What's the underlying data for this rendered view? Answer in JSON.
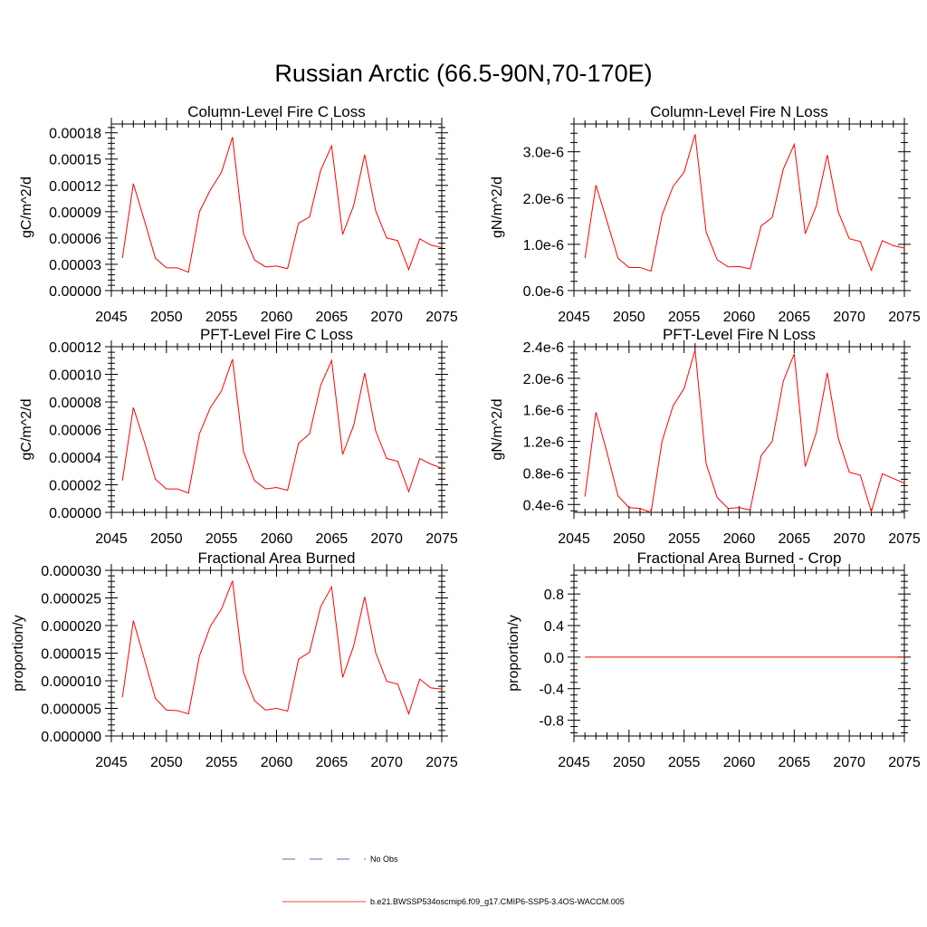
{
  "title": "Russian Arctic (66.5-90N,70-170E)",
  "chart_data": [
    {
      "type": "line",
      "title": "Column-Level Fire C Loss",
      "ylabel": "gC/m^2/d",
      "xlim": [
        2045,
        2075
      ],
      "ylim": [
        0,
        0.00019
      ],
      "xticks": [
        2045,
        2050,
        2055,
        2060,
        2065,
        2070,
        2075
      ],
      "xtick_labels": [
        "2045",
        "2050",
        "2055",
        "2060",
        "2065",
        "2070",
        "2075"
      ],
      "yticks": [
        0,
        3e-05,
        6e-05,
        9e-05,
        0.00012,
        0.00015,
        0.00018
      ],
      "ytick_labels": [
        "0.00000",
        "0.00003",
        "0.00006",
        "0.00009",
        "0.00012",
        "0.00015",
        "0.00018"
      ],
      "color": "#ff0000",
      "x": [
        2046,
        2047,
        2048,
        2049,
        2050,
        2051,
        2052,
        2053,
        2054,
        2055,
        2056,
        2057,
        2058,
        2059,
        2060,
        2061,
        2062,
        2063,
        2064,
        2065,
        2066,
        2067,
        2068,
        2069,
        2070,
        2071,
        2072,
        2073,
        2074,
        2075
      ],
      "values": [
        3.7e-05,
        0.000122,
        8e-05,
        3.7e-05,
        2.6e-05,
        2.6e-05,
        2.1e-05,
        9e-05,
        0.000115,
        0.000135,
        0.000175,
        6.5e-05,
        3.5e-05,
        2.7e-05,
        2.8e-05,
        2.5e-05,
        7.7e-05,
        8.4e-05,
        0.000137,
        0.000165,
        6.4e-05,
        9.7e-05,
        0.000155,
        9.1e-05,
        6e-05,
        5.7e-05,
        2.4e-05,
        5.9e-05,
        5.2e-05,
        4.9e-05
      ]
    },
    {
      "type": "line",
      "title": "Column-Level Fire N Loss",
      "ylabel": "gN/m^2/d",
      "xlim": [
        2045,
        2075
      ],
      "ylim": [
        0,
        3.6e-06
      ],
      "xticks": [
        2045,
        2050,
        2055,
        2060,
        2065,
        2070,
        2075
      ],
      "xtick_labels": [
        "2045",
        "2050",
        "2055",
        "2060",
        "2065",
        "2070",
        "2075"
      ],
      "yticks": [
        0,
        1e-06,
        2e-06,
        3e-06
      ],
      "ytick_labels": [
        "0.0e-6",
        "1.0e-6",
        "2.0e-6",
        "3.0e-6"
      ],
      "color": "#ff0000",
      "x": [
        2046,
        2047,
        2048,
        2049,
        2050,
        2051,
        2052,
        2053,
        2054,
        2055,
        2056,
        2057,
        2058,
        2059,
        2060,
        2061,
        2062,
        2063,
        2064,
        2065,
        2066,
        2067,
        2068,
        2069,
        2070,
        2071,
        2072,
        2073,
        2074,
        2075
      ],
      "values": [
        7e-07,
        2.28e-06,
        1.5e-06,
        7e-07,
        5e-07,
        5e-07,
        4.2e-07,
        1.63e-06,
        2.25e-06,
        2.56e-06,
        3.38e-06,
        1.27e-06,
        6.7e-07,
        5.1e-07,
        5.2e-07,
        4.7e-07,
        1.4e-06,
        1.58e-06,
        2.62e-06,
        3.16e-06,
        1.23e-06,
        1.83e-06,
        2.93e-06,
        1.7e-06,
        1.12e-06,
        1.06e-06,
        4.4e-07,
        1.08e-06,
        9.7e-07,
        9.2e-07
      ]
    },
    {
      "type": "line",
      "title": "PFT-Level Fire C Loss",
      "ylabel": "gC/m^2/d",
      "xlim": [
        2045,
        2075
      ],
      "ylim": [
        0,
        0.00012
      ],
      "xticks": [
        2045,
        2050,
        2055,
        2060,
        2065,
        2070,
        2075
      ],
      "xtick_labels": [
        "2045",
        "2050",
        "2055",
        "2060",
        "2065",
        "2070",
        "2075"
      ],
      "yticks": [
        0,
        2e-05,
        4e-05,
        6e-05,
        8e-05,
        0.0001,
        0.00012
      ],
      "ytick_labels": [
        "0.00000",
        "0.00002",
        "0.00004",
        "0.00006",
        "0.00008",
        "0.00010",
        "0.00012"
      ],
      "color": "#ff0000",
      "x": [
        2046,
        2047,
        2048,
        2049,
        2050,
        2051,
        2052,
        2053,
        2054,
        2055,
        2056,
        2057,
        2058,
        2059,
        2060,
        2061,
        2062,
        2063,
        2064,
        2065,
        2066,
        2067,
        2068,
        2069,
        2070,
        2071,
        2072,
        2073,
        2074,
        2075
      ],
      "values": [
        2.3e-05,
        7.6e-05,
        5.1e-05,
        2.4e-05,
        1.7e-05,
        1.7e-05,
        1.4e-05,
        5.7e-05,
        7.6e-05,
        8.8e-05,
        0.000111,
        4.4e-05,
        2.3e-05,
        1.7e-05,
        1.8e-05,
        1.6e-05,
        5e-05,
        5.7e-05,
        9.2e-05,
        0.00011,
        4.2e-05,
        6.3e-05,
        0.000101,
        5.9e-05,
        3.9e-05,
        3.7e-05,
        1.5e-05,
        3.9e-05,
        3.5e-05,
        3.2e-05
      ]
    },
    {
      "type": "line",
      "title": "PFT-Level Fire N Loss",
      "ylabel": "gN/m^2/d",
      "xlim": [
        2045,
        2075
      ],
      "ylim": [
        3e-07,
        2.4e-06
      ],
      "xticks": [
        2045,
        2050,
        2055,
        2060,
        2065,
        2070,
        2075
      ],
      "xtick_labels": [
        "2045",
        "2050",
        "2055",
        "2060",
        "2065",
        "2070",
        "2075"
      ],
      "yticks": [
        4e-07,
        8e-07,
        1.2e-06,
        1.6e-06,
        2e-06,
        2.4e-06
      ],
      "ytick_labels": [
        "0.4e-6",
        "0.8e-6",
        "1.2e-6",
        "1.6e-6",
        "2.0e-6",
        "2.4e-6"
      ],
      "color": "#ff0000",
      "x": [
        2046,
        2047,
        2048,
        2049,
        2050,
        2051,
        2052,
        2053,
        2054,
        2055,
        2056,
        2057,
        2058,
        2059,
        2060,
        2061,
        2062,
        2063,
        2064,
        2065,
        2066,
        2067,
        2068,
        2069,
        2070,
        2071,
        2072,
        2073,
        2074,
        2075
      ],
      "values": [
        5e-07,
        1.57e-06,
        1.06e-06,
        5.1e-07,
        3.6e-07,
        3.5e-07,
        3e-07,
        1.2e-06,
        1.65e-06,
        1.87e-06,
        2.36e-06,
        9.2e-07,
        4.9e-07,
        3.5e-07,
        3.6e-07,
        3.3e-07,
        1.02e-06,
        1.2e-06,
        1.96e-06,
        2.31e-06,
        8.8e-07,
        1.31e-06,
        2.07e-06,
        1.24e-06,
        8.1e-07,
        7.7e-07,
        3.1e-07,
        7.9e-07,
        7.3e-07,
        6.7e-07
      ]
    },
    {
      "type": "line",
      "title": "Fractional Area Burned",
      "ylabel": "proportion/y",
      "xlim": [
        2045,
        2075
      ],
      "ylim": [
        0,
        3e-05
      ],
      "xticks": [
        2045,
        2050,
        2055,
        2060,
        2065,
        2070,
        2075
      ],
      "xtick_labels": [
        "2045",
        "2050",
        "2055",
        "2060",
        "2065",
        "2070",
        "2075"
      ],
      "yticks": [
        0,
        5e-06,
        1e-05,
        1.5e-05,
        2e-05,
        2.5e-05,
        3e-05
      ],
      "ytick_labels": [
        "0.000000",
        "0.000005",
        "0.000010",
        "0.000015",
        "0.000020",
        "0.000025",
        "0.000030"
      ],
      "color": "#ff0000",
      "x": [
        2046,
        2047,
        2048,
        2049,
        2050,
        2051,
        2052,
        2053,
        2054,
        2055,
        2056,
        2057,
        2058,
        2059,
        2060,
        2061,
        2062,
        2063,
        2064,
        2065,
        2066,
        2067,
        2068,
        2069,
        2070,
        2071,
        2072,
        2073,
        2074,
        2075
      ],
      "values": [
        7e-06,
        2.09e-05,
        1.39e-05,
        6.8e-06,
        4.7e-06,
        4.6e-06,
        4e-06,
        1.45e-05,
        1.99e-05,
        2.3e-05,
        2.81e-05,
        1.15e-05,
        6.4e-06,
        4.7e-06,
        5e-06,
        4.5e-06,
        1.39e-05,
        1.52e-05,
        2.34e-05,
        2.7e-05,
        1.06e-05,
        1.63e-05,
        2.52e-05,
        1.51e-05,
        9.9e-06,
        9.4e-06,
        4e-06,
        1.03e-05,
        8.7e-06,
        8.5e-06
      ]
    },
    {
      "type": "line",
      "title": "Fractional Area Burned - Crop",
      "ylabel": "proportion/y",
      "xlim": [
        2045,
        2075
      ],
      "ylim": [
        -1.0,
        1.1
      ],
      "xticks": [
        2045,
        2050,
        2055,
        2060,
        2065,
        2070,
        2075
      ],
      "xtick_labels": [
        "2045",
        "2050",
        "2055",
        "2060",
        "2065",
        "2070",
        "2075"
      ],
      "yticks": [
        -0.8,
        -0.4,
        0.0,
        0.4,
        0.8
      ],
      "ytick_labels": [
        "-0.8",
        "-0.4",
        "0.0",
        "0.4",
        "0.8"
      ],
      "color": "#ff0000",
      "x": [
        2046,
        2047,
        2048,
        2049,
        2050,
        2051,
        2052,
        2053,
        2054,
        2055,
        2056,
        2057,
        2058,
        2059,
        2060,
        2061,
        2062,
        2063,
        2064,
        2065,
        2066,
        2067,
        2068,
        2069,
        2070,
        2071,
        2072,
        2073,
        2074,
        2075
      ],
      "values": [
        0,
        0,
        0,
        0,
        0,
        0,
        0,
        0,
        0,
        0,
        0,
        0,
        0,
        0,
        0,
        0,
        0,
        0,
        0,
        0,
        0,
        0,
        0,
        0,
        0,
        0,
        0,
        0,
        0,
        0
      ]
    }
  ],
  "legend": [
    {
      "label": "No Obs",
      "color": "#3333aa",
      "style": "dashed"
    },
    {
      "label": "b.e21.BWSSP534oscmip6.f09_g17.CMIP6-SSP5-3.4OS-WACCM.005",
      "color": "#ff0000",
      "style": "solid"
    }
  ]
}
